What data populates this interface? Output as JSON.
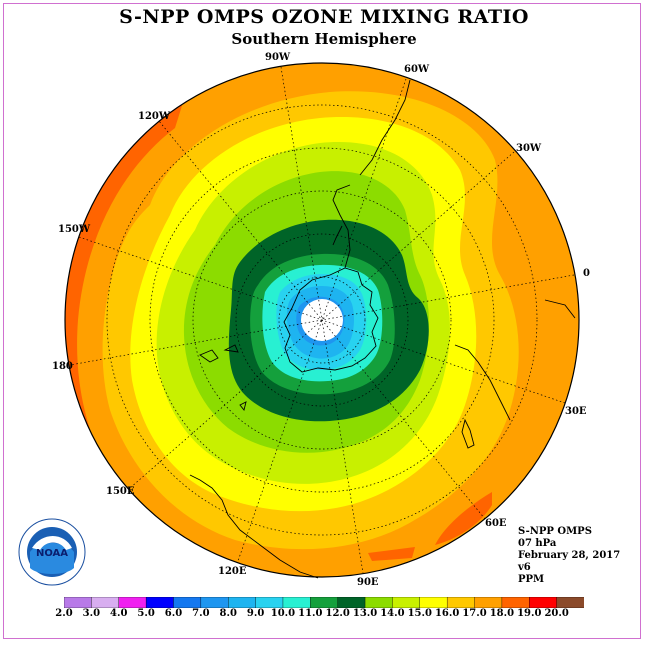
{
  "title": "S-NPP OMPS OZONE MIXING RATIO",
  "subtitle": "Southern Hemisphere",
  "meridian_labels": {
    "w90": "90W",
    "w60": "60W",
    "w120": "120W",
    "w30": "30W",
    "w150": "150W",
    "zero": "0",
    "d180": "180",
    "e30": "30E",
    "e150": "150E",
    "e60": "60E",
    "e120": "120E",
    "e90": "90E"
  },
  "info": {
    "product": "S-NPP OMPS",
    "level": "07 hPa",
    "date": "February 28, 2017",
    "version": "v6",
    "units": "PPM"
  },
  "logo_text": "NOAA",
  "colorbar": {
    "ticks": [
      "2.0",
      "3.0",
      "4.0",
      "5.0",
      "6.0",
      "7.0",
      "8.0",
      "9.0",
      "10.0",
      "11.0",
      "12.0",
      "13.0",
      "14.0",
      "15.0",
      "16.0",
      "17.0",
      "18.0",
      "19.0",
      "20.0"
    ],
    "colors": [
      "#b87ae8",
      "#d8aef0",
      "#f020f0",
      "#0000ff",
      "#1478f0",
      "#1e96f0",
      "#1eb4f0",
      "#28d2f0",
      "#28f0d2",
      "#14a03c",
      "#006428",
      "#8cdc00",
      "#c8f000",
      "#ffff00",
      "#ffc800",
      "#ffa000",
      "#ff6400",
      "#ff0000",
      "#8b4a2a"
    ]
  },
  "colors": {
    "c17": "#ffa000",
    "c18": "#ff6400",
    "c16": "#ffc800",
    "c15": "#ffff00",
    "c14": "#c8f000",
    "c13": "#8cdc00",
    "c12": "#006428",
    "c11": "#14a03c",
    "c10": "#28f0d2",
    "c9": "#28d2f0",
    "c8": "#1eb4f0",
    "c7": "#1e96f0"
  }
}
